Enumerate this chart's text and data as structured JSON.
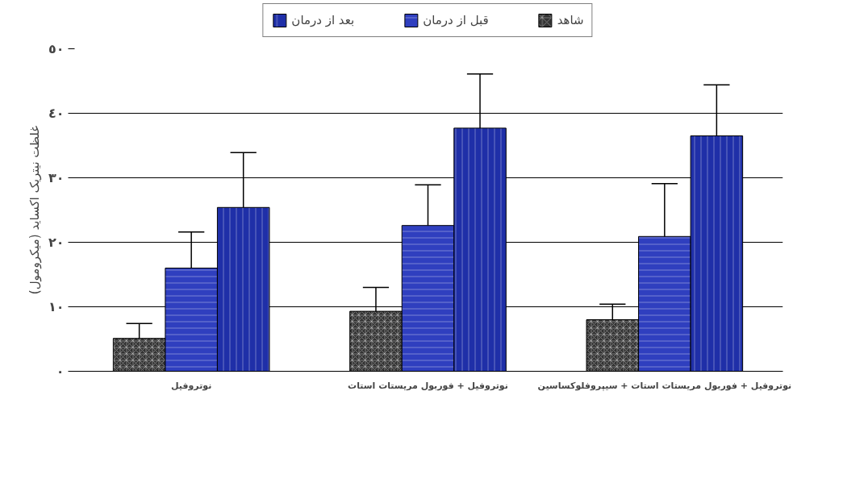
{
  "chart_data": {
    "type": "bar",
    "ylabel": "غلظت نیتریک اکساید (میکرومول)",
    "categories": [
      "نوتروفیل",
      "نوتروفیل + فوربول مریستات استات",
      "نوتروفیل + فوربول مریستات استات + سیپروفلوکساسین"
    ],
    "series": [
      {
        "name": "شاهد",
        "color": "#333333",
        "values": [
          5.1,
          9.3,
          8.0
        ],
        "errors": [
          [
            5.1,
            7.4
          ],
          [
            9.3,
            13.0
          ],
          [
            8.0,
            10.4
          ]
        ]
      },
      {
        "name": "قبل از درمان",
        "color": "#2f3fbf",
        "values": [
          16.0,
          22.6,
          20.9
        ],
        "errors": [
          [
            16.0,
            21.6
          ],
          [
            22.6,
            28.9
          ],
          [
            20.9,
            29.1
          ]
        ]
      },
      {
        "name": "بعد از درمان",
        "color": "#1f2fa8",
        "values": [
          25.4,
          37.7,
          36.5
        ],
        "errors": [
          [
            25.4,
            33.9
          ],
          [
            37.7,
            46.1
          ],
          [
            36.5,
            44.4
          ]
        ]
      }
    ],
    "ylim": [
      0,
      50
    ],
    "yticks": [
      {
        "value": 0,
        "label": "٠"
      },
      {
        "value": 10,
        "label": "١٠"
      },
      {
        "value": 20,
        "label": "٢٠"
      },
      {
        "value": 30,
        "label": "٣٠"
      },
      {
        "value": 40,
        "label": "٤٠"
      },
      {
        "value": 50,
        "label": "٥٠"
      }
    ],
    "grid": "y",
    "legend": "top"
  }
}
